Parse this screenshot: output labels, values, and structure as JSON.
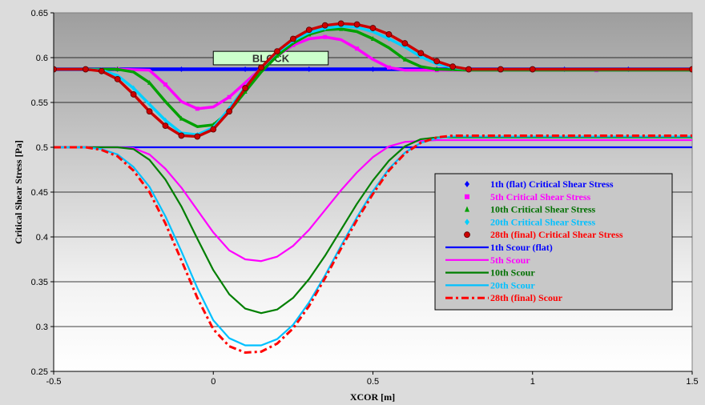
{
  "chart_data": {
    "type": "line",
    "title": "",
    "xlabel": "XCOR [m]",
    "ylabel": "Critical Shear Stress [Pa]",
    "xlim": [
      -0.5,
      1.5
    ],
    "ylim": [
      0.25,
      0.65
    ],
    "xticks": [
      -0.5,
      0,
      0.5,
      1,
      1.5
    ],
    "xtick_labels": [
      "-0.5",
      "0",
      "0.5",
      "1",
      "1.5"
    ],
    "yticks": [
      0.25,
      0.3,
      0.35,
      0.4,
      0.45,
      0.5,
      0.55,
      0.6,
      0.65
    ],
    "ytick_labels": [
      "0.25",
      "0.3",
      "0.35",
      "0.4",
      "0.45",
      "0.5",
      "0.55",
      "0.6",
      "0.65"
    ],
    "grid": "horizontal",
    "legend_position": "center-right",
    "annotation": {
      "text": "BLOCK",
      "x0": 0.0,
      "x1": 0.36,
      "y0": 0.592,
      "y1": 0.607
    },
    "series": [
      {
        "name": "1th (flat) Critical Shear Stress",
        "kind": "marker",
        "marker": "diamond",
        "color": "#0000ff",
        "text_color": "#0000ff",
        "x": [
          -0.5,
          -0.4,
          -0.3,
          -0.2,
          -0.1,
          0.0,
          0.1,
          0.2,
          0.3,
          0.4,
          0.5,
          0.6,
          0.7,
          0.8,
          0.9,
          1.0,
          1.1,
          1.2,
          1.3,
          1.4,
          1.5
        ],
        "y": [
          0.587,
          0.587,
          0.587,
          0.587,
          0.587,
          0.587,
          0.587,
          0.587,
          0.587,
          0.587,
          0.587,
          0.587,
          0.587,
          0.587,
          0.587,
          0.587,
          0.587,
          0.587,
          0.587,
          0.587,
          0.587
        ]
      },
      {
        "name": "5th Critical Shear Stress",
        "kind": "marker",
        "marker": "square",
        "color": "#ff00ff",
        "text_color": "#ff00ff",
        "x": [
          -0.5,
          -0.4,
          -0.3,
          -0.2,
          -0.15,
          -0.1,
          -0.05,
          0.0,
          0.05,
          0.1,
          0.15,
          0.2,
          0.25,
          0.3,
          0.35,
          0.4,
          0.45,
          0.5,
          0.55,
          0.6,
          0.7,
          0.8,
          0.9,
          1.0,
          1.2,
          1.5
        ],
        "y": [
          0.587,
          0.587,
          0.587,
          0.586,
          0.57,
          0.551,
          0.543,
          0.545,
          0.556,
          0.572,
          0.588,
          0.602,
          0.614,
          0.621,
          0.623,
          0.62,
          0.61,
          0.598,
          0.589,
          0.586,
          0.586,
          0.586,
          0.586,
          0.586,
          0.586,
          0.586
        ]
      },
      {
        "name": "10th Critical Shear Stress",
        "kind": "marker",
        "marker": "triangle",
        "color": "#00a000",
        "text_color": "#007000",
        "x": [
          -0.5,
          -0.4,
          -0.3,
          -0.25,
          -0.2,
          -0.15,
          -0.1,
          -0.05,
          0.0,
          0.05,
          0.1,
          0.15,
          0.2,
          0.25,
          0.3,
          0.35,
          0.4,
          0.45,
          0.5,
          0.55,
          0.6,
          0.65,
          0.7,
          0.8,
          0.9,
          1.0,
          1.5
        ],
        "y": [
          0.587,
          0.587,
          0.587,
          0.584,
          0.572,
          0.551,
          0.532,
          0.523,
          0.525,
          0.54,
          0.562,
          0.584,
          0.602,
          0.616,
          0.626,
          0.631,
          0.632,
          0.629,
          0.621,
          0.611,
          0.598,
          0.59,
          0.587,
          0.586,
          0.586,
          0.586,
          0.586
        ]
      },
      {
        "name": "20th Critical Shear Stress",
        "kind": "marker",
        "marker": "diamond",
        "color": "#00d0ff",
        "text_color": "#00c0ff",
        "x": [
          -0.5,
          -0.4,
          -0.35,
          -0.3,
          -0.25,
          -0.2,
          -0.15,
          -0.1,
          -0.05,
          0.0,
          0.05,
          0.1,
          0.15,
          0.2,
          0.25,
          0.3,
          0.35,
          0.4,
          0.45,
          0.5,
          0.55,
          0.6,
          0.65,
          0.7,
          0.75,
          0.8,
          0.9,
          1.0,
          1.5
        ],
        "y": [
          0.587,
          0.587,
          0.586,
          0.58,
          0.566,
          0.548,
          0.53,
          0.516,
          0.514,
          0.522,
          0.543,
          0.567,
          0.589,
          0.606,
          0.619,
          0.628,
          0.633,
          0.635,
          0.634,
          0.629,
          0.621,
          0.612,
          0.601,
          0.593,
          0.589,
          0.587,
          0.587,
          0.587,
          0.587
        ]
      },
      {
        "name": "28th (final) Critical Shear Stress",
        "kind": "marker",
        "marker": "circle",
        "color": "#cc0000",
        "text_color": "#ff0000",
        "x": [
          -0.5,
          -0.4,
          -0.35,
          -0.3,
          -0.25,
          -0.2,
          -0.15,
          -0.1,
          -0.05,
          0.0,
          0.05,
          0.1,
          0.15,
          0.2,
          0.25,
          0.3,
          0.35,
          0.4,
          0.45,
          0.5,
          0.55,
          0.6,
          0.65,
          0.7,
          0.75,
          0.8,
          0.9,
          1.0,
          1.5
        ],
        "y": [
          0.587,
          0.587,
          0.585,
          0.576,
          0.559,
          0.54,
          0.524,
          0.513,
          0.512,
          0.52,
          0.54,
          0.566,
          0.589,
          0.607,
          0.621,
          0.631,
          0.636,
          0.638,
          0.637,
          0.633,
          0.626,
          0.616,
          0.605,
          0.596,
          0.59,
          0.587,
          0.587,
          0.587,
          0.587
        ]
      },
      {
        "name": "1th Scour (flat)",
        "kind": "line",
        "dash": "solid",
        "color": "#0000ff",
        "text_color": "#0000ff",
        "x": [
          -0.5,
          1.5
        ],
        "y": [
          0.5,
          0.5
        ]
      },
      {
        "name": "5th Scour",
        "kind": "line",
        "dash": "solid",
        "color": "#ff00ff",
        "text_color": "#ff00ff",
        "x": [
          -0.5,
          -0.3,
          -0.25,
          -0.2,
          -0.15,
          -0.1,
          -0.05,
          0.0,
          0.05,
          0.1,
          0.15,
          0.2,
          0.25,
          0.3,
          0.35,
          0.4,
          0.45,
          0.5,
          0.55,
          0.6,
          0.7,
          0.8,
          1.0,
          1.5
        ],
        "y": [
          0.5,
          0.5,
          0.499,
          0.492,
          0.476,
          0.455,
          0.43,
          0.405,
          0.385,
          0.375,
          0.373,
          0.378,
          0.39,
          0.408,
          0.43,
          0.452,
          0.472,
          0.489,
          0.501,
          0.506,
          0.508,
          0.508,
          0.508,
          0.508
        ]
      },
      {
        "name": "10th Scour",
        "kind": "line",
        "dash": "solid",
        "color": "#007f00",
        "text_color": "#007000",
        "x": [
          -0.5,
          -0.3,
          -0.25,
          -0.2,
          -0.15,
          -0.1,
          -0.05,
          0.0,
          0.05,
          0.1,
          0.15,
          0.2,
          0.25,
          0.3,
          0.35,
          0.4,
          0.45,
          0.5,
          0.55,
          0.6,
          0.65,
          0.7,
          0.8,
          1.0,
          1.5
        ],
        "y": [
          0.5,
          0.5,
          0.498,
          0.486,
          0.464,
          0.434,
          0.398,
          0.363,
          0.336,
          0.32,
          0.315,
          0.319,
          0.332,
          0.353,
          0.379,
          0.408,
          0.437,
          0.463,
          0.485,
          0.501,
          0.509,
          0.511,
          0.511,
          0.511,
          0.511
        ]
      },
      {
        "name": "20th Scour",
        "kind": "line",
        "dash": "solid",
        "color": "#00c0ff",
        "text_color": "#00c0ff",
        "x": [
          -0.5,
          -0.4,
          -0.35,
          -0.3,
          -0.25,
          -0.2,
          -0.15,
          -0.1,
          -0.05,
          0.0,
          0.05,
          0.1,
          0.15,
          0.2,
          0.25,
          0.3,
          0.35,
          0.4,
          0.45,
          0.5,
          0.55,
          0.6,
          0.65,
          0.7,
          0.75,
          0.8,
          1.0,
          1.5
        ],
        "y": [
          0.5,
          0.5,
          0.498,
          0.492,
          0.478,
          0.456,
          0.423,
          0.384,
          0.343,
          0.307,
          0.287,
          0.279,
          0.279,
          0.286,
          0.302,
          0.327,
          0.357,
          0.39,
          0.422,
          0.451,
          0.476,
          0.494,
          0.505,
          0.51,
          0.512,
          0.512,
          0.512,
          0.512
        ]
      },
      {
        "name": "28th (final) Scour",
        "kind": "line",
        "dash": "dash-dot",
        "color": "#ff0000",
        "text_color": "#ff0000",
        "x": [
          -0.5,
          -0.4,
          -0.35,
          -0.3,
          -0.25,
          -0.2,
          -0.15,
          -0.1,
          -0.05,
          0.0,
          0.05,
          0.1,
          0.15,
          0.2,
          0.25,
          0.3,
          0.35,
          0.4,
          0.45,
          0.5,
          0.55,
          0.6,
          0.65,
          0.7,
          0.75,
          0.8,
          1.0,
          1.5
        ],
        "y": [
          0.5,
          0.5,
          0.497,
          0.49,
          0.474,
          0.45,
          0.415,
          0.374,
          0.332,
          0.297,
          0.278,
          0.271,
          0.272,
          0.281,
          0.298,
          0.323,
          0.354,
          0.387,
          0.419,
          0.448,
          0.474,
          0.493,
          0.505,
          0.511,
          0.513,
          0.513,
          0.513,
          0.513
        ]
      }
    ]
  }
}
